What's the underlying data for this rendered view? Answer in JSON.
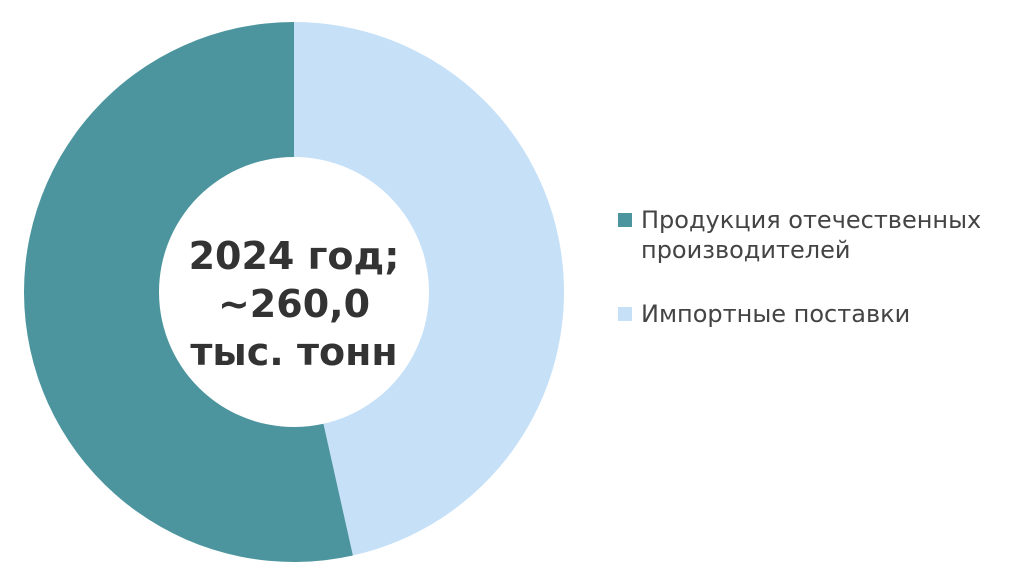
{
  "chart_data": {
    "type": "pie",
    "variant": "donut",
    "center_label": [
      "2024 год;",
      "~260,0",
      "тыс. тонн"
    ],
    "categories": [
      "Продукция отечественных производителей",
      "Импортные поставки"
    ],
    "values_percent": [
      53.5,
      46.5
    ],
    "colors": [
      "#4c959e",
      "#c5e0f7"
    ],
    "legend_position": "right",
    "legend": [
      {
        "lines": [
          "Продукция отечественных",
          "производителей"
        ]
      },
      {
        "lines": [
          "Импортные поставки"
        ]
      }
    ]
  }
}
